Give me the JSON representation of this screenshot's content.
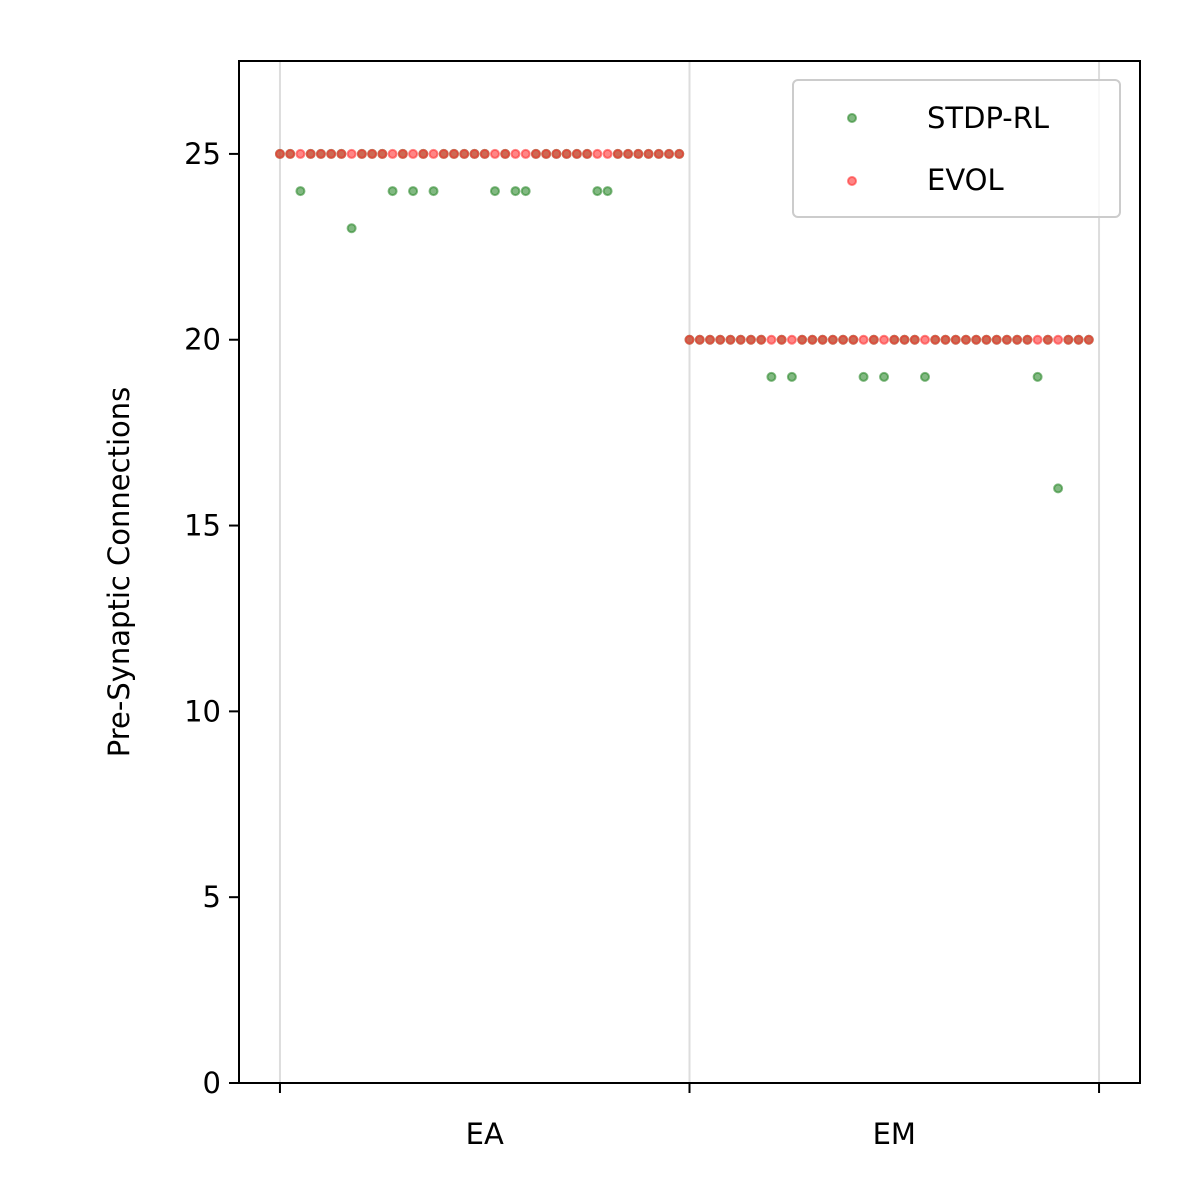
{
  "chart_data": {
    "type": "scatter",
    "ylabel": "Pre-Synaptic Connections",
    "xlabel": "",
    "ylim": [
      0,
      27.5
    ],
    "y_ticks": [
      0,
      5,
      10,
      15,
      20,
      25
    ],
    "categories": [
      "EA",
      "EM"
    ],
    "grid": "vertical lines at group boundaries",
    "legend_position": "top-right",
    "legend": [
      {
        "name": "STDP-RL",
        "color": "#2e8b2e"
      },
      {
        "name": "EVOL",
        "color": "#ff3333"
      }
    ],
    "x_range": [
      -4,
      84
    ],
    "boundaries": [
      0,
      40,
      80
    ],
    "series": [
      {
        "name": "STDP-RL",
        "color": "#2e8b2e",
        "x": [
          0,
          1,
          2,
          3,
          4,
          5,
          6,
          7,
          8,
          9,
          10,
          11,
          12,
          13,
          14,
          15,
          16,
          17,
          18,
          19,
          20,
          21,
          22,
          23,
          24,
          25,
          26,
          27,
          28,
          29,
          30,
          31,
          32,
          33,
          34,
          35,
          36,
          37,
          38,
          39,
          40,
          41,
          42,
          43,
          44,
          45,
          46,
          47,
          48,
          49,
          50,
          51,
          52,
          53,
          54,
          55,
          56,
          57,
          58,
          59,
          60,
          61,
          62,
          63,
          64,
          65,
          66,
          67,
          68,
          69,
          70,
          71,
          72,
          73,
          74,
          75,
          76,
          77,
          78,
          79
        ],
        "y": [
          25,
          25,
          24,
          25,
          25,
          25,
          25,
          23,
          25,
          25,
          25,
          24,
          25,
          24,
          25,
          24,
          25,
          25,
          25,
          25,
          25,
          24,
          25,
          24,
          24,
          25,
          25,
          25,
          25,
          25,
          25,
          24,
          24,
          25,
          25,
          25,
          25,
          25,
          25,
          25,
          20,
          20,
          20,
          20,
          20,
          20,
          20,
          20,
          19,
          20,
          19,
          20,
          20,
          20,
          20,
          20,
          20,
          19,
          20,
          19,
          20,
          20,
          20,
          19,
          20,
          20,
          20,
          20,
          20,
          20,
          20,
          20,
          20,
          20,
          19,
          20,
          16,
          20,
          20,
          20
        ]
      },
      {
        "name": "EVOL",
        "color": "#ff3333",
        "x": [
          0,
          1,
          2,
          3,
          4,
          5,
          6,
          7,
          8,
          9,
          10,
          11,
          12,
          13,
          14,
          15,
          16,
          17,
          18,
          19,
          20,
          21,
          22,
          23,
          24,
          25,
          26,
          27,
          28,
          29,
          30,
          31,
          32,
          33,
          34,
          35,
          36,
          37,
          38,
          39,
          40,
          41,
          42,
          43,
          44,
          45,
          46,
          47,
          48,
          49,
          50,
          51,
          52,
          53,
          54,
          55,
          56,
          57,
          58,
          59,
          60,
          61,
          62,
          63,
          64,
          65,
          66,
          67,
          68,
          69,
          70,
          71,
          72,
          73,
          74,
          75,
          76,
          77,
          78,
          79
        ],
        "y": [
          25,
          25,
          25,
          25,
          25,
          25,
          25,
          25,
          25,
          25,
          25,
          25,
          25,
          25,
          25,
          25,
          25,
          25,
          25,
          25,
          25,
          25,
          25,
          25,
          25,
          25,
          25,
          25,
          25,
          25,
          25,
          25,
          25,
          25,
          25,
          25,
          25,
          25,
          25,
          25,
          20,
          20,
          20,
          20,
          20,
          20,
          20,
          20,
          20,
          20,
          20,
          20,
          20,
          20,
          20,
          20,
          20,
          20,
          20,
          20,
          20,
          20,
          20,
          20,
          20,
          20,
          20,
          20,
          20,
          20,
          20,
          20,
          20,
          20,
          20,
          20,
          20,
          20,
          20,
          20
        ]
      }
    ]
  }
}
